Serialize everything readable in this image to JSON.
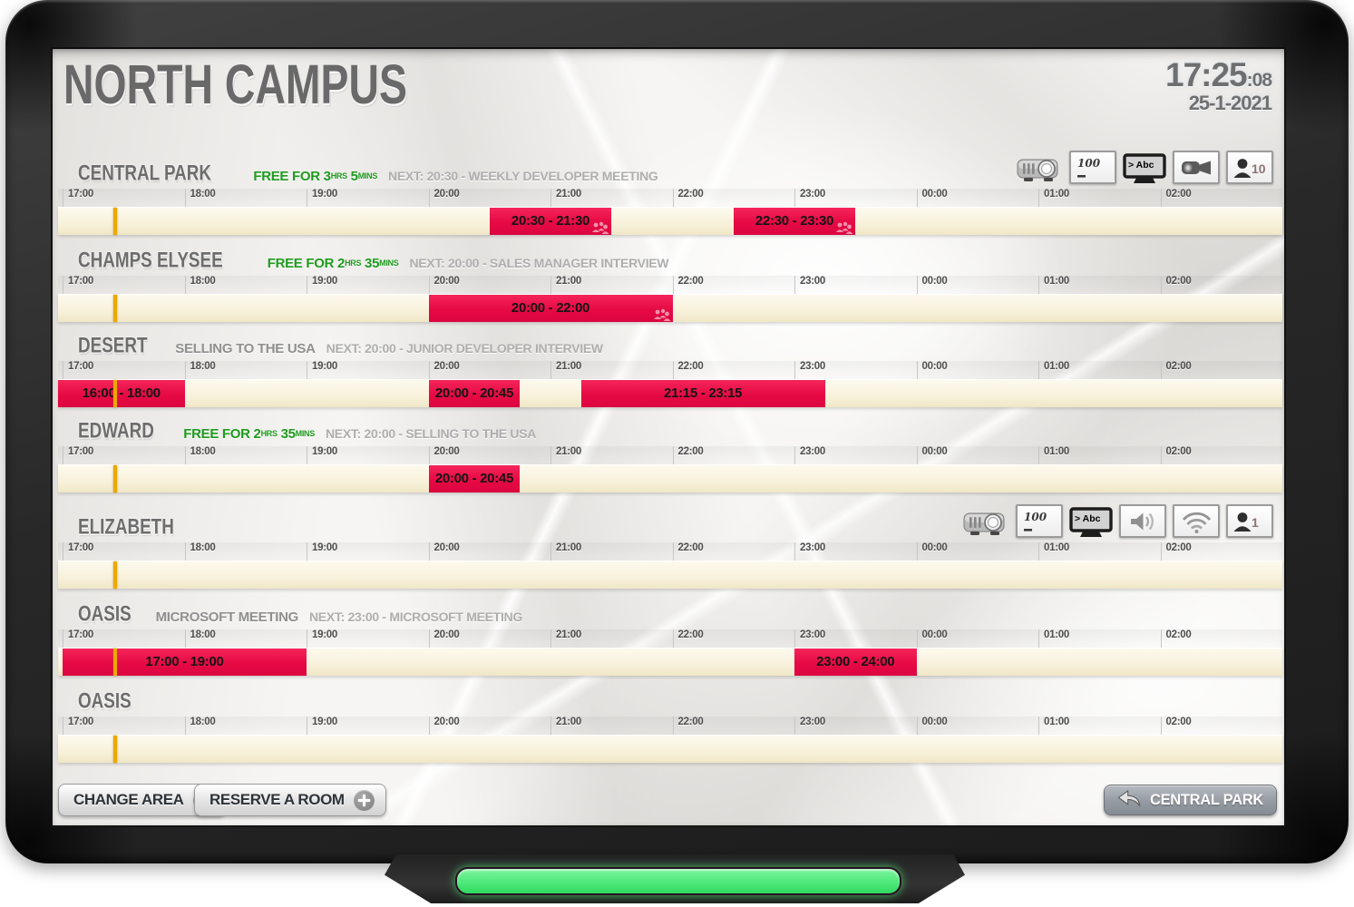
{
  "header": {
    "title": "NORTH CAMPUS",
    "time": "17:25",
    "seconds": ":08",
    "date": "25-1-2021"
  },
  "timeline": {
    "ticks": [
      "17:00",
      "18:00",
      "19:00",
      "20:00",
      "21:00",
      "22:00",
      "23:00",
      "00:00",
      "01:00",
      "02:00"
    ],
    "window_start": "17:00",
    "now": "17:25"
  },
  "rooms": [
    {
      "name": "CENTRAL PARK",
      "free": {
        "label": "FREE FOR",
        "hours": "3",
        "hours_unit": "HRS",
        "minutes": "5",
        "minutes_unit": "MINS"
      },
      "next": "NEXT: 20:30 - WEEKLY DEVELOPER MEETING",
      "equipment": [
        {
          "icon": "projector-icon"
        },
        {
          "icon": "whiteboard-icon",
          "label": "100"
        },
        {
          "icon": "tv-icon",
          "label": "> Abc"
        },
        {
          "icon": "camera-icon"
        },
        {
          "icon": "capacity-icon",
          "label": "10"
        }
      ],
      "bookings": [
        {
          "label": "20:30 - 21:30",
          "start": "20:30",
          "end": "21:30",
          "attendees": true
        },
        {
          "label": "22:30 - 23:30",
          "start": "22:30",
          "end": "23:30",
          "attendees": true
        }
      ]
    },
    {
      "name": "CHAMPS ELYSEE",
      "free": {
        "label": "FREE FOR",
        "hours": "2",
        "hours_unit": "HRS",
        "minutes": "35",
        "minutes_unit": "MINS"
      },
      "next": "NEXT: 20:00 - SALES MANAGER INTERVIEW",
      "equipment": [],
      "bookings": [
        {
          "label": "20:00 - 22:00",
          "start": "20:00",
          "end": "22:00",
          "attendees": true
        }
      ]
    },
    {
      "name": "DESERT",
      "current": "SELLING TO THE USA",
      "next": "NEXT: 20:00 - JUNIOR DEVELOPER INTERVIEW",
      "equipment": [],
      "bookings": [
        {
          "label": "16:00 - 18:00",
          "start": "16:00",
          "end": "18:00"
        },
        {
          "label": "20:00 - 20:45",
          "start": "20:00",
          "end": "20:45"
        },
        {
          "label": "21:15 - 23:15",
          "start": "21:15",
          "end": "23:15"
        }
      ]
    },
    {
      "name": "EDWARD",
      "free": {
        "label": "FREE FOR",
        "hours": "2",
        "hours_unit": "HRS",
        "minutes": "35",
        "minutes_unit": "MINS"
      },
      "next": "NEXT: 20:00 - SELLING TO THE USA",
      "equipment": [],
      "bookings": [
        {
          "label": "20:00 - 20:45",
          "start": "20:00",
          "end": "20:45"
        }
      ]
    },
    {
      "name": "ELIZABETH",
      "equipment": [
        {
          "icon": "projector-icon"
        },
        {
          "icon": "whiteboard-icon",
          "label": "100"
        },
        {
          "icon": "tv-icon",
          "label": "> Abc"
        },
        {
          "icon": "speaker-icon"
        },
        {
          "icon": "wifi-icon"
        },
        {
          "icon": "capacity-icon",
          "label": "1"
        }
      ],
      "bookings": []
    },
    {
      "name": "OASIS",
      "current": "MICROSOFT MEETING",
      "next": "NEXT: 23:00 - MICROSOFT MEETING",
      "equipment": [],
      "bookings": [
        {
          "label": "17:00 - 19:00",
          "start": "17:00",
          "end": "19:00"
        },
        {
          "label": "23:00 - 24:00",
          "start": "23:00",
          "end": "24:00"
        }
      ]
    },
    {
      "name": "OASIS",
      "equipment": [],
      "bookings": []
    }
  ],
  "footer": {
    "change_area": "CHANGE AREA",
    "reserve_room": "RESERVE A ROOM",
    "back_label": "CENTRAL PARK"
  },
  "colors": {
    "booking_red": "#e60a44",
    "free_green": "#1f9b1f",
    "now_amber": "#eda700",
    "bar_cream": "#f9f3de",
    "led_green": "#4fe87b"
  }
}
